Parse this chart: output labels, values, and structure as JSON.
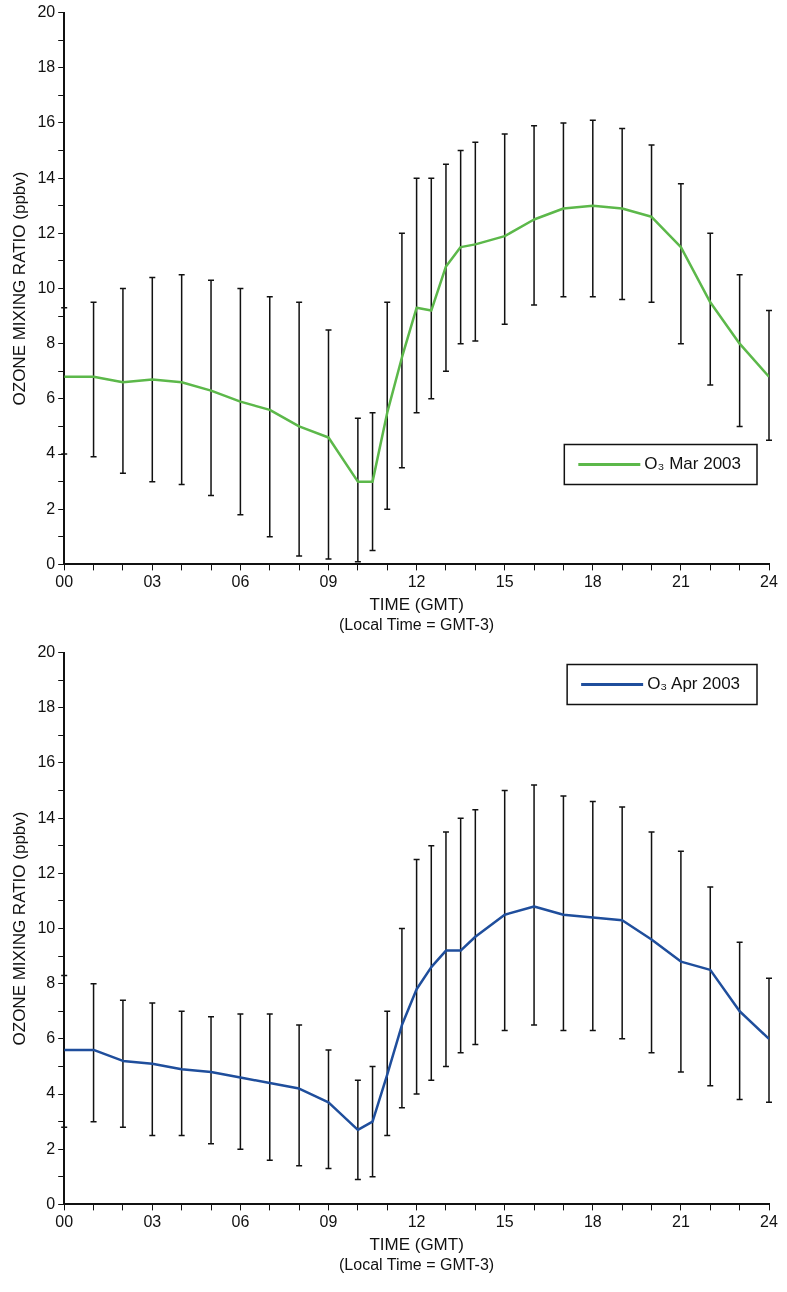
{
  "chart_data": [
    {
      "type": "line",
      "xlabel": "TIME (GMT)",
      "ylabel": "OZONE MIXING RATIO (ppbv)",
      "annotations": [
        "(Local Time = GMT-3)"
      ],
      "legend": "bottom right",
      "marker": "none",
      "grid": false,
      "x": [
        0,
        1,
        2,
        3,
        4,
        5,
        6,
        7,
        8,
        9,
        10,
        10.5,
        11,
        11.5,
        12,
        12.5,
        13,
        13.5,
        14,
        15,
        16,
        17,
        18,
        19,
        20,
        21,
        22,
        23,
        24
      ],
      "series": [
        {
          "name": "O₃ Mar 2003",
          "color": "#5cb84a",
          "values": [
            6.8,
            6.8,
            6.6,
            6.7,
            6.6,
            6.3,
            5.9,
            5.6,
            5.0,
            4.6,
            3.0,
            3.0,
            5.5,
            7.5,
            9.3,
            9.2,
            10.8,
            11.5,
            11.6,
            11.9,
            12.5,
            12.9,
            13.0,
            12.9,
            12.6,
            11.5,
            9.5,
            8.0,
            6.8
          ],
          "errors": [
            [
              4.0,
              9.3
            ],
            [
              3.9,
              9.5
            ],
            [
              3.3,
              10.0
            ],
            [
              3.0,
              10.4
            ],
            [
              2.9,
              10.5
            ],
            [
              2.5,
              10.3
            ],
            [
              1.8,
              10.0
            ],
            [
              1.0,
              9.7
            ],
            [
              0.3,
              9.5
            ],
            [
              0.2,
              8.5
            ],
            [
              0.1,
              5.3
            ],
            [
              0.5,
              5.5
            ],
            [
              2.0,
              9.5
            ],
            [
              3.5,
              12.0
            ],
            [
              5.5,
              14.0
            ],
            [
              6.0,
              14.0
            ],
            [
              7.0,
              14.5
            ],
            [
              8.0,
              15.0
            ],
            [
              8.1,
              15.3
            ],
            [
              8.7,
              15.6
            ],
            [
              9.4,
              15.9
            ],
            [
              9.7,
              16.0
            ],
            [
              9.7,
              16.1
            ],
            [
              9.6,
              15.8
            ],
            [
              9.5,
              15.2
            ],
            [
              8.0,
              13.8
            ],
            [
              6.5,
              12.0
            ],
            [
              5.0,
              10.5
            ],
            [
              4.5,
              9.2
            ]
          ]
        }
      ],
      "xlim": [
        0,
        24
      ],
      "xticks": [
        {
          "value": 0,
          "label": "00"
        },
        {
          "value": 1,
          "label": null
        },
        {
          "value": 2,
          "label": null
        },
        {
          "value": 3,
          "label": "03"
        },
        {
          "value": 4,
          "label": null
        },
        {
          "value": 5,
          "label": null
        },
        {
          "value": 6,
          "label": "06"
        },
        {
          "value": 7,
          "label": null
        },
        {
          "value": 8,
          "label": null
        },
        {
          "value": 9,
          "label": "09"
        },
        {
          "value": 10,
          "label": null
        },
        {
          "value": 11,
          "label": null
        },
        {
          "value": 12,
          "label": "12"
        },
        {
          "value": 13,
          "label": null
        },
        {
          "value": 14,
          "label": null
        },
        {
          "value": 15,
          "label": "15"
        },
        {
          "value": 16,
          "label": null
        },
        {
          "value": 17,
          "label": null
        },
        {
          "value": 18,
          "label": "18"
        },
        {
          "value": 19,
          "label": null
        },
        {
          "value": 20,
          "label": null
        },
        {
          "value": 21,
          "label": "21"
        },
        {
          "value": 22,
          "label": null
        },
        {
          "value": 23,
          "label": null
        },
        {
          "value": 24,
          "label": "24"
        }
      ],
      "ylim": [
        0,
        20
      ],
      "yticks": [
        0,
        {
          "value": 1,
          "label": null
        },
        2,
        {
          "value": 3,
          "label": null
        },
        4,
        {
          "value": 5,
          "label": null
        },
        6,
        {
          "value": 7,
          "label": null
        },
        8,
        {
          "value": 9,
          "label": null
        },
        10,
        {
          "value": 11,
          "label": null
        },
        12,
        {
          "value": 13,
          "label": null
        },
        14,
        {
          "value": 15,
          "label": null
        },
        16,
        {
          "value": 17,
          "label": null
        },
        18,
        {
          "value": 19,
          "label": null
        },
        20
      ]
    },
    {
      "type": "line",
      "xlabel": "TIME (GMT)",
      "ylabel": "OZONE MIXING RATIO (ppbv)",
      "annotations": [
        "(Local Time = GMT-3)"
      ],
      "legend": "top right",
      "marker": "none",
      "grid": false,
      "x": [
        0,
        1,
        2,
        3,
        4,
        5,
        6,
        7,
        8,
        9,
        10,
        10.5,
        11,
        11.5,
        12,
        12.5,
        13,
        13.5,
        14,
        15,
        16,
        17,
        18,
        19,
        20,
        21,
        22,
        23,
        24
      ],
      "series": [
        {
          "name": "O₃ Apr 2003",
          "color": "#1f4e9c",
          "values": [
            5.6,
            5.6,
            5.2,
            5.1,
            4.9,
            4.8,
            4.6,
            4.4,
            4.2,
            3.7,
            2.7,
            3.0,
            4.7,
            6.5,
            7.8,
            8.6,
            9.2,
            9.2,
            9.7,
            10.5,
            10.8,
            10.5,
            10.4,
            10.3,
            9.6,
            8.8,
            8.5,
            7.0,
            6.0
          ],
          "errors": [
            [
              2.8,
              8.3
            ],
            [
              3.0,
              8.0
            ],
            [
              2.8,
              7.4
            ],
            [
              2.5,
              7.3
            ],
            [
              2.5,
              7.0
            ],
            [
              2.2,
              6.8
            ],
            [
              2.0,
              6.9
            ],
            [
              1.6,
              6.9
            ],
            [
              1.4,
              6.5
            ],
            [
              1.3,
              5.6
            ],
            [
              0.9,
              4.5
            ],
            [
              1.0,
              5.0
            ],
            [
              2.5,
              7.0
            ],
            [
              3.5,
              10.0
            ],
            [
              4.0,
              12.5
            ],
            [
              4.5,
              13.0
            ],
            [
              5.0,
              13.5
            ],
            [
              5.5,
              14.0
            ],
            [
              5.8,
              14.3
            ],
            [
              6.3,
              15.0
            ],
            [
              6.5,
              15.2
            ],
            [
              6.3,
              14.8
            ],
            [
              6.3,
              14.6
            ],
            [
              6.0,
              14.4
            ],
            [
              5.5,
              13.5
            ],
            [
              4.8,
              12.8
            ],
            [
              4.3,
              11.5
            ],
            [
              3.8,
              9.5
            ],
            [
              3.7,
              8.2
            ]
          ]
        }
      ],
      "xlim": [
        0,
        24
      ],
      "xticks": [
        {
          "value": 0,
          "label": "00"
        },
        {
          "value": 1,
          "label": null
        },
        {
          "value": 2,
          "label": null
        },
        {
          "value": 3,
          "label": "03"
        },
        {
          "value": 4,
          "label": null
        },
        {
          "value": 5,
          "label": null
        },
        {
          "value": 6,
          "label": "06"
        },
        {
          "value": 7,
          "label": null
        },
        {
          "value": 8,
          "label": null
        },
        {
          "value": 9,
          "label": "09"
        },
        {
          "value": 10,
          "label": null
        },
        {
          "value": 11,
          "label": null
        },
        {
          "value": 12,
          "label": "12"
        },
        {
          "value": 13,
          "label": null
        },
        {
          "value": 14,
          "label": null
        },
        {
          "value": 15,
          "label": "15"
        },
        {
          "value": 16,
          "label": null
        },
        {
          "value": 17,
          "label": null
        },
        {
          "value": 18,
          "label": "18"
        },
        {
          "value": 19,
          "label": null
        },
        {
          "value": 20,
          "label": null
        },
        {
          "value": 21,
          "label": "21"
        },
        {
          "value": 22,
          "label": null
        },
        {
          "value": 23,
          "label": null
        },
        {
          "value": 24,
          "label": "24"
        }
      ],
      "ylim": [
        0,
        20
      ],
      "yticks": [
        0,
        {
          "value": 1,
          "label": null
        },
        2,
        {
          "value": 3,
          "label": null
        },
        4,
        {
          "value": 5,
          "label": null
        },
        6,
        {
          "value": 7,
          "label": null
        },
        8,
        {
          "value": 9,
          "label": null
        },
        10,
        {
          "value": 11,
          "label": null
        },
        12,
        {
          "value": 13,
          "label": null
        },
        14,
        {
          "value": 15,
          "label": null
        },
        16,
        {
          "value": 17,
          "label": null
        },
        18,
        {
          "value": 19,
          "label": null
        },
        20
      ]
    }
  ]
}
